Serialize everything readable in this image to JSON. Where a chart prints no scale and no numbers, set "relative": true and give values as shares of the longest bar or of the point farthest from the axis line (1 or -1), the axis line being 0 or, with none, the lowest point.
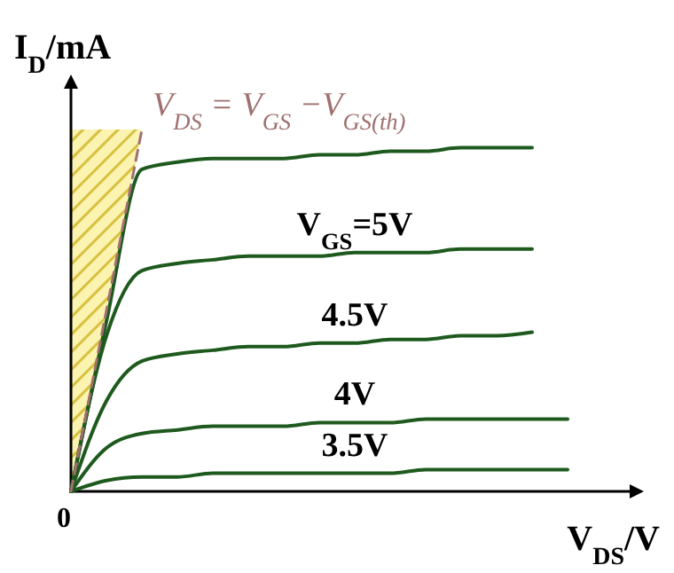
{
  "chart_data": {
    "type": "line",
    "relative": true,
    "xlabel": "V$_{DS}$/V",
    "ylabel": "I$_{D}$/mA",
    "annotations": [
      "0"
    ],
    "categories": [
      null,
      null,
      null,
      null,
      null,
      null,
      null,
      null,
      null,
      null,
      null,
      null,
      null,
      null,
      null,
      null
    ],
    "series": [
      {
        "color": "#1e5a1e",
        "values": [
          0,
          0.47,
          0.89,
          0.91,
          0.92,
          0.92,
          0.92,
          0.93,
          0.93,
          0.94,
          0.94,
          0.95,
          0.95,
          0.95,
          null,
          null
        ]
      },
      {
        "name": "V$_{GS}$=5V",
        "color": "#1e5a1e",
        "values": [
          0,
          0.43,
          0.61,
          0.63,
          0.64,
          0.65,
          0.65,
          0.65,
          0.66,
          0.66,
          0.66,
          0.67,
          0.67,
          0.67,
          null,
          null
        ]
      },
      {
        "name": "4.5V",
        "color": "#1e5a1e",
        "values": [
          0,
          0.25,
          0.36,
          0.38,
          0.39,
          0.4,
          0.4,
          0.41,
          0.41,
          0.42,
          0.42,
          0.43,
          0.43,
          0.44,
          null,
          null
        ]
      },
      {
        "name": "4V",
        "color": "#1e5a1e",
        "values": [
          0,
          0.12,
          0.16,
          0.17,
          0.18,
          0.18,
          0.18,
          0.19,
          0.19,
          0.19,
          0.2,
          0.2,
          0.2,
          0.2,
          0.2,
          null
        ]
      },
      {
        "name": "3.5V",
        "color": "#1e5a1e",
        "values": [
          0,
          0.03,
          0.04,
          0.04,
          0.05,
          0.05,
          0.05,
          0.05,
          0.05,
          0.05,
          0.06,
          0.06,
          0.06,
          0.06,
          0.06,
          null
        ]
      },
      {
        "name": "V$_{DS}$ = V$_{GS}$ −V$_{GS(th)}$",
        "color": "#a07070",
        "line_style": "dashed",
        "values": [
          0,
          0.5,
          1,
          null,
          null,
          null,
          null,
          null,
          null,
          null,
          null,
          null,
          null,
          null,
          null,
          null
        ]
      }
    ]
  }
}
